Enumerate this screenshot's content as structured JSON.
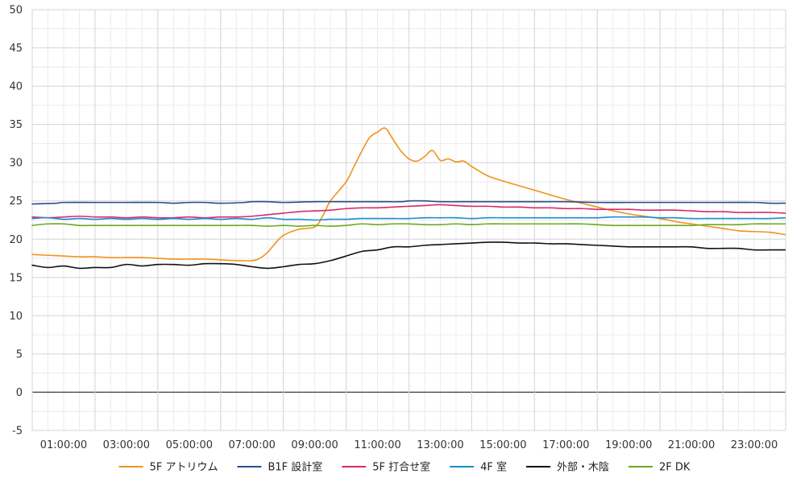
{
  "chart_data": {
    "type": "line",
    "title": "",
    "xlabel": "",
    "ylabel": "",
    "ylim": [
      -5,
      50
    ],
    "xlim": [
      "00:00:00",
      "24:00:00"
    ],
    "y_ticks": [
      -5,
      0,
      5,
      10,
      15,
      20,
      25,
      30,
      35,
      40,
      45,
      50
    ],
    "x_ticks": [
      "01:00:00",
      "03:00:00",
      "05:00:00",
      "07:00:00",
      "09:00:00",
      "11:00:00",
      "13:00:00",
      "15:00:00",
      "17:00:00",
      "19:00:00",
      "21:00:00",
      "23:00:00"
    ],
    "grid": true,
    "legend_position": "bottom",
    "series": [
      {
        "name": "5F アトリウム",
        "color": "#f0921e",
        "x": [
          "00:00",
          "00:30",
          "01:00",
          "01:30",
          "02:00",
          "02:30",
          "03:00",
          "03:30",
          "04:00",
          "04:30",
          "05:00",
          "05:30",
          "06:00",
          "06:30",
          "07:00",
          "07:15",
          "07:30",
          "07:45",
          "08:00",
          "08:30",
          "09:00",
          "09:15",
          "09:30",
          "10:00",
          "10:15",
          "10:30",
          "10:45",
          "11:00",
          "11:15",
          "11:30",
          "11:45",
          "12:00",
          "12:15",
          "12:30",
          "12:45",
          "13:00",
          "13:15",
          "13:30",
          "13:45",
          "14:00",
          "14:30",
          "15:00",
          "15:30",
          "16:00",
          "16:30",
          "17:00",
          "17:30",
          "18:00",
          "18:30",
          "19:00",
          "19:30",
          "20:00",
          "20:30",
          "21:00",
          "21:30",
          "22:00",
          "22:30",
          "23:00",
          "23:30",
          "23:59"
        ],
        "values": [
          18.0,
          17.9,
          17.8,
          17.7,
          17.7,
          17.6,
          17.6,
          17.6,
          17.5,
          17.4,
          17.4,
          17.4,
          17.3,
          17.2,
          17.2,
          17.5,
          18.3,
          19.5,
          20.5,
          21.3,
          21.6,
          23.0,
          25.0,
          27.5,
          29.5,
          31.5,
          33.3,
          34.0,
          34.5,
          33.0,
          31.5,
          30.5,
          30.2,
          30.8,
          31.6,
          30.3,
          30.5,
          30.1,
          30.2,
          29.5,
          28.3,
          27.6,
          27.0,
          26.4,
          25.8,
          25.2,
          24.7,
          24.2,
          23.7,
          23.3,
          23.0,
          22.7,
          22.3,
          22.0,
          21.7,
          21.4,
          21.1,
          21.0,
          20.9,
          20.6
        ]
      },
      {
        "name": "B1F 設計室",
        "color": "#2c4c8c",
        "x": [
          "00:00",
          "00:45",
          "01:00",
          "02:00",
          "03:00",
          "04:00",
          "04:30",
          "05:00",
          "05:30",
          "06:00",
          "06:45",
          "07:00",
          "07:30",
          "08:00",
          "09:00",
          "10:00",
          "11:00",
          "11:45",
          "12:00",
          "12:30",
          "13:00",
          "14:00",
          "15:00",
          "16:00",
          "17:00",
          "18:00",
          "19:00",
          "20:00",
          "21:00",
          "22:00",
          "23:00",
          "23:30",
          "23:59"
        ],
        "values": [
          24.6,
          24.7,
          24.8,
          24.8,
          24.8,
          24.8,
          24.7,
          24.8,
          24.8,
          24.7,
          24.8,
          24.9,
          24.9,
          24.8,
          24.9,
          24.9,
          24.9,
          24.9,
          25.0,
          25.0,
          24.9,
          24.9,
          24.9,
          24.9,
          24.9,
          24.8,
          24.8,
          24.8,
          24.8,
          24.8,
          24.8,
          24.7,
          24.7
        ]
      },
      {
        "name": "5F 打合せ室",
        "color": "#d8286c",
        "x": [
          "00:00",
          "00:30",
          "01:00",
          "01:30",
          "02:00",
          "02:30",
          "03:00",
          "03:30",
          "04:00",
          "04:30",
          "05:00",
          "05:30",
          "06:00",
          "06:30",
          "07:00",
          "07:30",
          "08:00",
          "08:30",
          "09:00",
          "09:30",
          "10:00",
          "10:30",
          "11:00",
          "11:30",
          "12:00",
          "12:30",
          "13:00",
          "13:30",
          "14:00",
          "14:30",
          "15:00",
          "15:30",
          "16:00",
          "16:30",
          "17:00",
          "17:30",
          "18:00",
          "18:30",
          "19:00",
          "19:30",
          "20:00",
          "20:30",
          "21:00",
          "21:30",
          "22:00",
          "22:30",
          "23:00",
          "23:30",
          "23:59"
        ],
        "values": [
          22.9,
          22.8,
          22.9,
          23.0,
          22.9,
          22.9,
          22.8,
          22.9,
          22.8,
          22.8,
          22.9,
          22.8,
          22.9,
          22.9,
          23.0,
          23.2,
          23.4,
          23.6,
          23.7,
          23.8,
          24.0,
          24.1,
          24.1,
          24.2,
          24.3,
          24.4,
          24.5,
          24.4,
          24.3,
          24.3,
          24.2,
          24.2,
          24.1,
          24.1,
          24.0,
          24.0,
          23.9,
          23.9,
          23.9,
          23.8,
          23.8,
          23.8,
          23.7,
          23.6,
          23.6,
          23.5,
          23.5,
          23.5,
          23.4
        ]
      },
      {
        "name": "4F 室",
        "color": "#1b8bd1",
        "x": [
          "00:00",
          "00:30",
          "01:00",
          "01:30",
          "02:00",
          "02:30",
          "03:00",
          "03:30",
          "04:00",
          "04:30",
          "05:00",
          "05:30",
          "06:00",
          "06:30",
          "07:00",
          "07:30",
          "08:00",
          "08:30",
          "09:00",
          "09:30",
          "10:00",
          "10:30",
          "11:00",
          "11:30",
          "12:00",
          "12:30",
          "13:00",
          "13:30",
          "14:00",
          "14:30",
          "15:00",
          "15:30",
          "16:00",
          "16:30",
          "17:00",
          "17:30",
          "18:00",
          "18:30",
          "19:00",
          "19:30",
          "20:00",
          "20:30",
          "21:00",
          "21:30",
          "22:00",
          "22:30",
          "23:00",
          "23:30",
          "23:59"
        ],
        "values": [
          22.7,
          22.8,
          22.6,
          22.7,
          22.6,
          22.7,
          22.6,
          22.7,
          22.6,
          22.7,
          22.6,
          22.7,
          22.6,
          22.7,
          22.6,
          22.8,
          22.6,
          22.6,
          22.5,
          22.6,
          22.6,
          22.7,
          22.7,
          22.7,
          22.7,
          22.8,
          22.8,
          22.8,
          22.7,
          22.8,
          22.8,
          22.8,
          22.8,
          22.8,
          22.8,
          22.8,
          22.8,
          22.9,
          22.9,
          22.9,
          22.8,
          22.8,
          22.7,
          22.7,
          22.7,
          22.7,
          22.7,
          22.7,
          22.8
        ]
      },
      {
        "name": "外部・木陰",
        "color": "#111111",
        "x": [
          "00:00",
          "00:30",
          "01:00",
          "01:30",
          "02:00",
          "02:30",
          "03:00",
          "03:30",
          "04:00",
          "04:30",
          "05:00",
          "05:30",
          "06:00",
          "06:30",
          "07:00",
          "07:30",
          "08:00",
          "08:30",
          "09:00",
          "09:30",
          "10:00",
          "10:30",
          "11:00",
          "11:30",
          "12:00",
          "12:30",
          "13:00",
          "13:30",
          "14:00",
          "14:30",
          "15:00",
          "15:30",
          "16:00",
          "16:30",
          "17:00",
          "17:30",
          "18:00",
          "18:30",
          "19:00",
          "19:30",
          "20:00",
          "20:30",
          "21:00",
          "21:30",
          "22:00",
          "22:30",
          "23:00",
          "23:30",
          "23:59"
        ],
        "values": [
          16.6,
          16.3,
          16.5,
          16.2,
          16.3,
          16.3,
          16.7,
          16.5,
          16.7,
          16.7,
          16.6,
          16.8,
          16.8,
          16.7,
          16.4,
          16.2,
          16.4,
          16.7,
          16.8,
          17.2,
          17.8,
          18.4,
          18.6,
          19.0,
          19.0,
          19.2,
          19.3,
          19.4,
          19.5,
          19.6,
          19.6,
          19.5,
          19.5,
          19.4,
          19.4,
          19.3,
          19.2,
          19.1,
          19.0,
          19.0,
          19.0,
          19.0,
          19.0,
          18.8,
          18.8,
          18.8,
          18.6,
          18.6,
          18.6
        ]
      },
      {
        "name": "2F DK",
        "color": "#6aaa1e",
        "x": [
          "00:00",
          "00:30",
          "01:00",
          "01:30",
          "02:00",
          "02:30",
          "03:00",
          "03:30",
          "04:00",
          "04:30",
          "05:00",
          "05:30",
          "06:00",
          "06:30",
          "07:00",
          "07:30",
          "08:00",
          "08:30",
          "09:00",
          "09:30",
          "10:00",
          "10:30",
          "11:00",
          "11:30",
          "12:00",
          "12:30",
          "13:00",
          "13:30",
          "14:00",
          "14:30",
          "15:00",
          "15:30",
          "16:00",
          "16:30",
          "17:00",
          "17:30",
          "18:00",
          "18:30",
          "19:00",
          "19:30",
          "20:00",
          "20:30",
          "21:00",
          "21:30",
          "22:00",
          "22:30",
          "23:00",
          "23:30",
          "23:59"
        ],
        "values": [
          21.8,
          22.0,
          22.0,
          21.8,
          21.8,
          21.8,
          21.8,
          21.8,
          21.8,
          21.8,
          21.8,
          21.8,
          21.8,
          21.8,
          21.8,
          21.7,
          21.8,
          21.7,
          21.8,
          21.7,
          21.8,
          22.0,
          21.9,
          22.0,
          22.0,
          21.9,
          21.9,
          22.0,
          21.9,
          22.0,
          22.0,
          22.0,
          22.0,
          22.0,
          22.0,
          22.0,
          21.9,
          21.8,
          21.8,
          21.8,
          21.8,
          21.8,
          21.8,
          21.9,
          21.9,
          21.9,
          22.0,
          22.0,
          22.0
        ]
      }
    ]
  }
}
